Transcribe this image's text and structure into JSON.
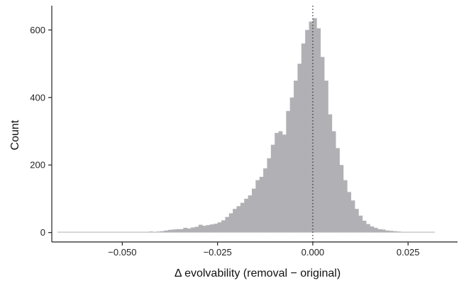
{
  "chart_data": {
    "type": "bar",
    "subtype": "histogram",
    "title": "",
    "xlabel": "Δ evolvability (removal − original)",
    "ylabel": "Count",
    "xlim": [
      -0.0685,
      0.038
    ],
    "ylim": [
      -28,
      672
    ],
    "x_ticks": [
      {
        "value": -0.05,
        "label": "−0.050"
      },
      {
        "value": -0.025,
        "label": "−0.025"
      },
      {
        "value": 0.0,
        "label": "0.000"
      },
      {
        "value": 0.025,
        "label": "0.025"
      }
    ],
    "y_ticks": [
      {
        "value": 0,
        "label": "0"
      },
      {
        "value": 200,
        "label": "200"
      },
      {
        "value": 400,
        "label": "400"
      },
      {
        "value": 600,
        "label": "600"
      }
    ],
    "bin_width": 0.001,
    "bins_start": -0.067,
    "values": [
      1,
      0,
      0,
      0,
      0,
      1,
      1,
      0,
      0,
      0,
      0,
      1,
      1,
      1,
      0,
      0,
      0,
      2,
      2,
      1,
      0,
      0,
      1,
      2,
      3,
      2,
      3,
      4,
      6,
      8,
      9,
      10,
      10,
      14,
      12,
      15,
      17,
      23,
      20,
      22,
      24,
      26,
      30,
      36,
      46,
      57,
      70,
      78,
      88,
      100,
      110,
      130,
      155,
      165,
      190,
      220,
      260,
      295,
      300,
      290,
      360,
      400,
      450,
      500,
      560,
      600,
      625,
      635,
      605,
      520,
      450,
      350,
      300,
      250,
      200,
      155,
      120,
      95,
      70,
      50,
      35,
      25,
      18,
      14,
      10,
      9,
      6,
      5,
      4,
      3,
      2,
      1,
      2,
      1,
      2,
      1,
      1,
      0,
      1
    ],
    "reference_line": {
      "x": 0.0,
      "style": "dotted"
    },
    "grid": false,
    "legend": "none",
    "colors": {
      "bars": "#b1b1b5",
      "axis": "#222222",
      "reference_line": "#333333"
    }
  }
}
